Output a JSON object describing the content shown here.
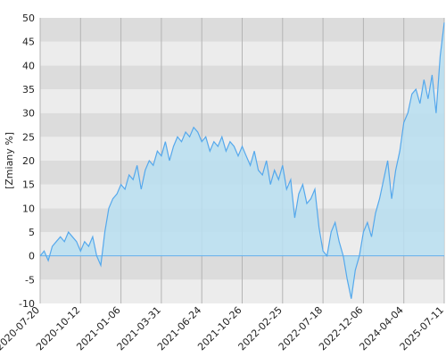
{
  "chart_data": {
    "type": "area",
    "y_label": "[Zmiany %]",
    "categories": [
      "2020-07-20",
      null,
      null,
      null,
      null,
      null,
      null,
      null,
      null,
      null,
      "2020-10-12",
      null,
      null,
      null,
      null,
      null,
      null,
      null,
      null,
      null,
      "2021-01-06",
      null,
      null,
      null,
      null,
      null,
      null,
      null,
      null,
      null,
      "2021-03-31",
      null,
      null,
      null,
      null,
      null,
      null,
      null,
      null,
      null,
      "2021-06-24",
      null,
      null,
      null,
      null,
      null,
      null,
      null,
      null,
      null,
      "2021-10-26",
      null,
      null,
      null,
      null,
      null,
      null,
      null,
      null,
      null,
      "2022-02-25",
      null,
      null,
      null,
      null,
      null,
      null,
      null,
      null,
      null,
      "2022-07-18",
      null,
      null,
      null,
      null,
      null,
      null,
      null,
      null,
      null,
      "2022-12-06",
      null,
      null,
      null,
      null,
      null,
      null,
      null,
      null,
      null,
      "2024-04-04",
      null,
      null,
      null,
      null,
      null,
      null,
      null,
      null,
      null,
      "2025-07-11"
    ],
    "values": [
      0,
      1,
      -1,
      2,
      3,
      4,
      3,
      5,
      4,
      3,
      1,
      3,
      2,
      4,
      0,
      -2,
      5,
      10,
      12,
      13,
      15,
      14,
      17,
      16,
      19,
      14,
      18,
      20,
      19,
      22,
      21,
      24,
      20,
      23,
      25,
      24,
      26,
      25,
      27,
      26,
      24,
      25,
      22,
      24,
      23,
      25,
      22,
      24,
      23,
      21,
      23,
      21,
      19,
      22,
      18,
      17,
      20,
      15,
      18,
      16,
      19,
      14,
      16,
      8,
      13,
      15,
      11,
      12,
      14,
      6,
      1,
      0,
      5,
      7,
      3,
      0,
      -5,
      -9,
      -3,
      0,
      5,
      7,
      4,
      9,
      12,
      16,
      20,
      12,
      18,
      22,
      28,
      30,
      34,
      35,
      32,
      37,
      33,
      38,
      30,
      42,
      49
    ],
    "color": "#55a8ec",
    "fill": "#b9dff1",
    "band_colors": [
      "#dcdcdc",
      "#ececec"
    ],
    "ylim": [
      -10,
      50
    ],
    "yticks": [
      -10,
      -5,
      0,
      5,
      10,
      15,
      20,
      25,
      30,
      35,
      40,
      45,
      50
    ],
    "grid": true
  }
}
